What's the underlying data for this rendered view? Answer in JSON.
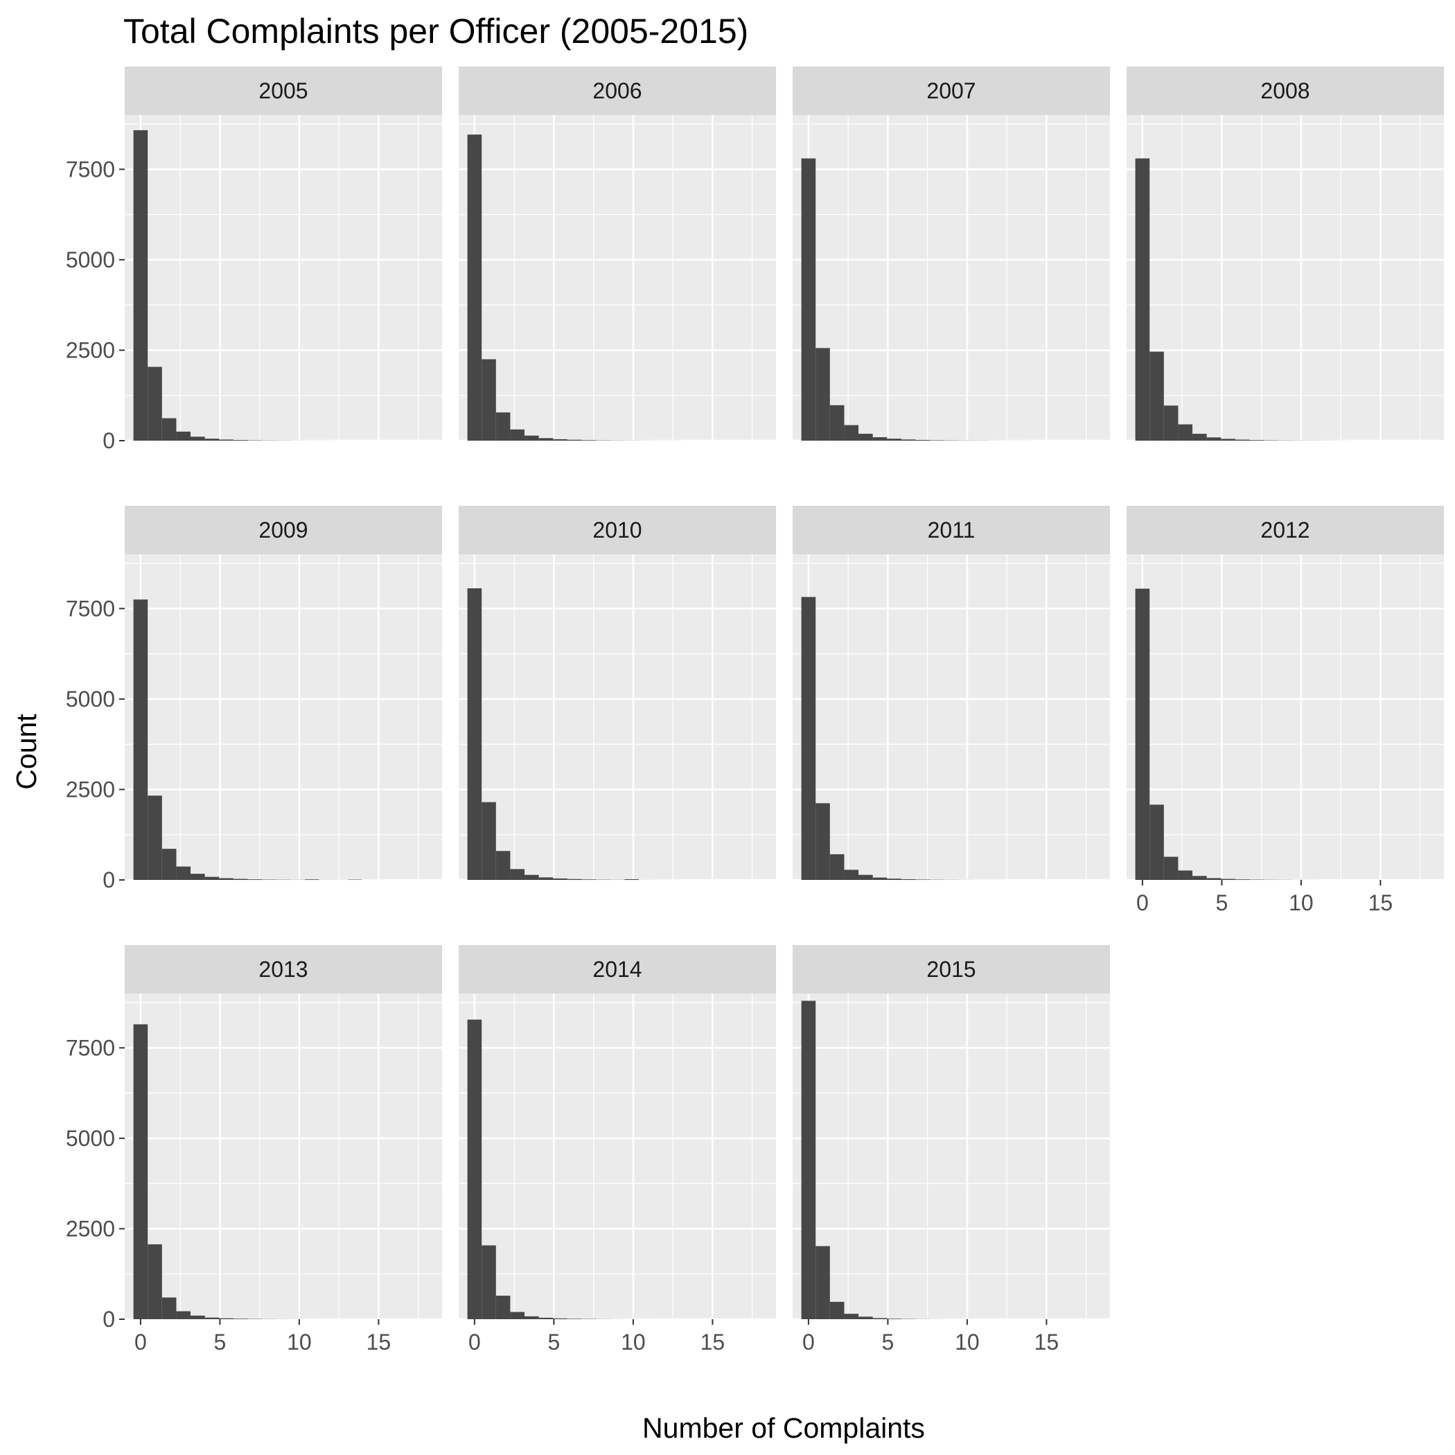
{
  "chart_data": {
    "type": "bar",
    "title": "Total Complaints per Officer (2005-2015)",
    "xlabel": "Number of Complaints",
    "ylabel": "Count",
    "facet_layout": "4 columns x 3 rows",
    "grid": true,
    "xlim": [
      -1,
      19
    ],
    "ylim": [
      0,
      9000
    ],
    "x_ticks": [
      0,
      5,
      10,
      15
    ],
    "y_ticks": [
      0,
      2500,
      5000,
      7500
    ],
    "bin_width": 0.9,
    "bins": [
      0,
      0.9,
      1.8,
      2.7,
      3.6,
      4.5,
      5.4,
      6.3,
      7.2,
      8.1,
      9.0,
      9.9,
      10.8,
      11.7,
      12.6,
      13.5,
      14.4,
      15.3,
      16.2,
      17.1
    ],
    "colors": {
      "bar": "#474747",
      "panel": "#ebebeb",
      "strip": "#d9d9d9",
      "grid": "#ffffff"
    },
    "facets": [
      {
        "label": "2005",
        "values": [
          8580,
          2040,
          620,
          250,
          110,
          55,
          30,
          18,
          10,
          6,
          4,
          2,
          1,
          1,
          0,
          0,
          0,
          0,
          0,
          0
        ]
      },
      {
        "label": "2006",
        "values": [
          8460,
          2250,
          780,
          310,
          140,
          70,
          40,
          25,
          15,
          8,
          5,
          3,
          2,
          1,
          1,
          0,
          0,
          0,
          0,
          0
        ]
      },
      {
        "label": "2007",
        "values": [
          7800,
          2560,
          980,
          430,
          190,
          95,
          55,
          32,
          20,
          12,
          8,
          5,
          4,
          2,
          1,
          1,
          0,
          0,
          0,
          0
        ]
      },
      {
        "label": "2008",
        "values": [
          7800,
          2460,
          970,
          450,
          190,
          90,
          50,
          28,
          16,
          10,
          6,
          4,
          3,
          2,
          1,
          0,
          0,
          0,
          0,
          0
        ]
      },
      {
        "label": "2009",
        "values": [
          7750,
          2330,
          860,
          370,
          170,
          85,
          48,
          28,
          17,
          10,
          7,
          4,
          15,
          3,
          2,
          10,
          1,
          0,
          0,
          0
        ]
      },
      {
        "label": "2010",
        "values": [
          8060,
          2150,
          800,
          300,
          140,
          70,
          40,
          24,
          14,
          8,
          5,
          20,
          2,
          1,
          1,
          0,
          0,
          0,
          0,
          0
        ]
      },
      {
        "label": "2011",
        "values": [
          7820,
          2120,
          710,
          280,
          140,
          65,
          35,
          20,
          12,
          7,
          4,
          2,
          1,
          1,
          0,
          0,
          0,
          0,
          0,
          0
        ]
      },
      {
        "label": "2012",
        "values": [
          8050,
          2080,
          640,
          260,
          110,
          50,
          28,
          16,
          10,
          6,
          4,
          2,
          1,
          0,
          0,
          0,
          0,
          0,
          0,
          0
        ]
      },
      {
        "label": "2013",
        "values": [
          8150,
          2070,
          600,
          220,
          100,
          45,
          25,
          15,
          9,
          5,
          3,
          2,
          1,
          0,
          0,
          0,
          0,
          0,
          0,
          0
        ]
      },
      {
        "label": "2014",
        "values": [
          8280,
          2040,
          650,
          200,
          80,
          40,
          22,
          13,
          8,
          4,
          2,
          1,
          1,
          0,
          0,
          0,
          0,
          0,
          0,
          0
        ]
      },
      {
        "label": "2015",
        "values": [
          8800,
          2020,
          480,
          150,
          70,
          30,
          15,
          8,
          4,
          2,
          1,
          1,
          0,
          0,
          0,
          0,
          0,
          0,
          0,
          0
        ]
      }
    ]
  }
}
